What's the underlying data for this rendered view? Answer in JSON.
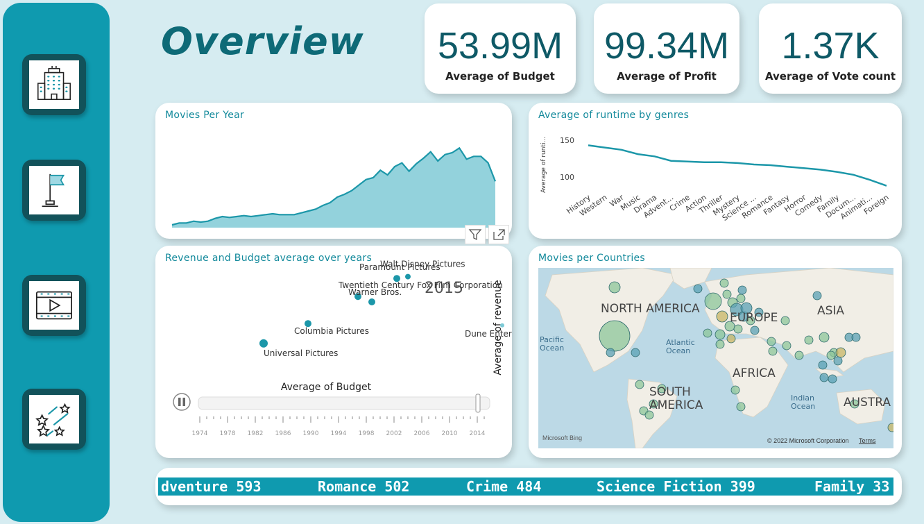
{
  "page": {
    "title": "Overview"
  },
  "kpis": [
    {
      "value": "53.99M",
      "label": "Average of Budget"
    },
    {
      "value": "99.34M",
      "label": "Average of Profit"
    },
    {
      "value": "1.37K",
      "label": "Average of Vote count"
    }
  ],
  "nav": [
    {
      "icon": "building-icon"
    },
    {
      "icon": "flag-icon"
    },
    {
      "icon": "video-icon"
    },
    {
      "icon": "stars-icon"
    }
  ],
  "movies_per_year": {
    "title": "Movies Per Year",
    "color": "#1c97a9",
    "fill": "#93d2dc"
  },
  "runtime_by_genre": {
    "title": "Average of runtime by genres",
    "ylabel": "Average of runti...",
    "color": "#1c97a9"
  },
  "revenue_budget": {
    "title": "Revenue and Budget average over years",
    "year": "2015",
    "xlabel": "Average of Budget",
    "ylabel": "Average of revenue",
    "axis_years": [
      "1974",
      "1978",
      "1982",
      "1986",
      "1990",
      "1994",
      "1998",
      "2002",
      "2006",
      "2010",
      "2014"
    ]
  },
  "countries_map": {
    "title": "Movies per Countries",
    "labels": {
      "north_america": "NORTH AMERICA",
      "europe": "EUROPE",
      "asia": "ASIA",
      "africa": "AFRICA",
      "south_america": "SOUTH AMERICA",
      "australia": "AUSTRA",
      "pacific": "Pacific Ocean",
      "atlantic": "Atlantic Ocean",
      "indian": "Indian Ocean"
    },
    "bing": "Microsoft Bing",
    "copyright": "© 2022 Microsoft Corporation",
    "terms": "Terms"
  },
  "ticker": {
    "items": [
      "dventure 593",
      "Romance 502",
      "Crime 484",
      "Science Fiction 399",
      "Family 33"
    ]
  },
  "chart_data": [
    {
      "type": "area",
      "title": "Movies Per Year",
      "values": [
        3,
        5,
        5,
        7,
        6,
        7,
        10,
        12,
        11,
        12,
        13,
        12,
        13,
        14,
        15,
        14,
        14,
        14,
        16,
        18,
        20,
        24,
        27,
        33,
        36,
        40,
        46,
        52,
        54,
        62,
        57,
        66,
        70,
        61,
        69,
        75,
        82,
        72,
        79,
        81,
        86,
        74,
        77,
        77,
        70,
        50
      ]
    },
    {
      "type": "line",
      "title": "Average of runtime by genres",
      "categories": [
        "History",
        "Western",
        "War",
        "Music",
        "Drama",
        "Advent...",
        "Crime",
        "Action",
        "Thriller",
        "Mystery",
        "Science ...",
        "Romance",
        "Fantasy",
        "Horror",
        "Comedy",
        "Family",
        "Docum...",
        "Animati...",
        "Foreign"
      ],
      "values": [
        143,
        140,
        137,
        131,
        128,
        122,
        121,
        120,
        120,
        119,
        117,
        116,
        114,
        112,
        110,
        107,
        103,
        96,
        88
      ],
      "yticks": [
        100,
        150
      ],
      "ylabel": "Average of runti..."
    },
    {
      "type": "scatter",
      "title": "Revenue and Budget average over years",
      "xlabel": "Average of Budget",
      "ylabel": "Average of revenue",
      "frame": "2015",
      "points": [
        {
          "name": "Universal Pictures",
          "x": 24,
          "y": 22,
          "size": 6
        },
        {
          "name": "Columbia Pictures",
          "x": 40,
          "y": 33,
          "size": 5
        },
        {
          "name": "Twentieth Century Fox Film Corporation",
          "x": 58,
          "y": 48,
          "size": 5
        },
        {
          "name": "Warner Bros.",
          "x": 63,
          "y": 45,
          "size": 5
        },
        {
          "name": "Paramount Pictures",
          "x": 72,
          "y": 58,
          "size": 5
        },
        {
          "name": "Walt Disney Pictures",
          "x": 76,
          "y": 59,
          "size": 4
        },
        {
          "name": "Dune Entertainment",
          "x": 110,
          "y": 32,
          "size": 3
        }
      ]
    }
  ]
}
